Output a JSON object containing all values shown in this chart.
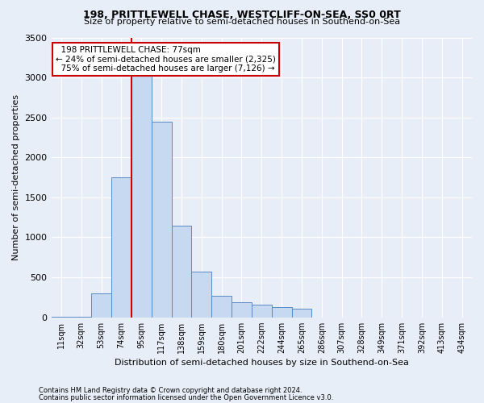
{
  "title": "198, PRITTLEWELL CHASE, WESTCLIFF-ON-SEA, SS0 0RT",
  "subtitle": "Size of property relative to semi-detached houses in Southend-on-Sea",
  "xlabel": "Distribution of semi-detached houses by size in Southend-on-Sea",
  "ylabel": "Number of semi-detached properties",
  "footer_line1": "Contains HM Land Registry data © Crown copyright and database right 2024.",
  "footer_line2": "Contains public sector information licensed under the Open Government Licence v3.0.",
  "bin_labels": [
    "11sqm",
    "32sqm",
    "53sqm",
    "74sqm",
    "95sqm",
    "117sqm",
    "138sqm",
    "159sqm",
    "180sqm",
    "201sqm",
    "222sqm",
    "244sqm",
    "265sqm",
    "286sqm",
    "307sqm",
    "328sqm",
    "349sqm",
    "371sqm",
    "392sqm",
    "413sqm",
    "434sqm"
  ],
  "bar_values": [
    5,
    5,
    300,
    1750,
    3050,
    2450,
    1150,
    570,
    270,
    190,
    160,
    130,
    110,
    0,
    0,
    0,
    0,
    0,
    0,
    0,
    0
  ],
  "bar_color": "#c7d9f0",
  "bar_edge_color": "#5a8ac6",
  "property_label": "198 PRITTLEWELL CHASE: 77sqm",
  "smaller_pct": 24,
  "smaller_count": 2325,
  "larger_pct": 75,
  "larger_count": 7126,
  "vline_x": 3.5,
  "vline_color": "#cc0000",
  "ylim": [
    0,
    3500
  ],
  "yticks": [
    0,
    500,
    1000,
    1500,
    2000,
    2500,
    3000,
    3500
  ],
  "annotation_box_color": "#ffffff",
  "annotation_box_edge": "#cc0000",
  "bg_color": "#e8eef8",
  "plot_bg_color": "#e8eef8",
  "grid_color": "#ffffff",
  "title_fontsize": 9,
  "subtitle_fontsize": 8
}
